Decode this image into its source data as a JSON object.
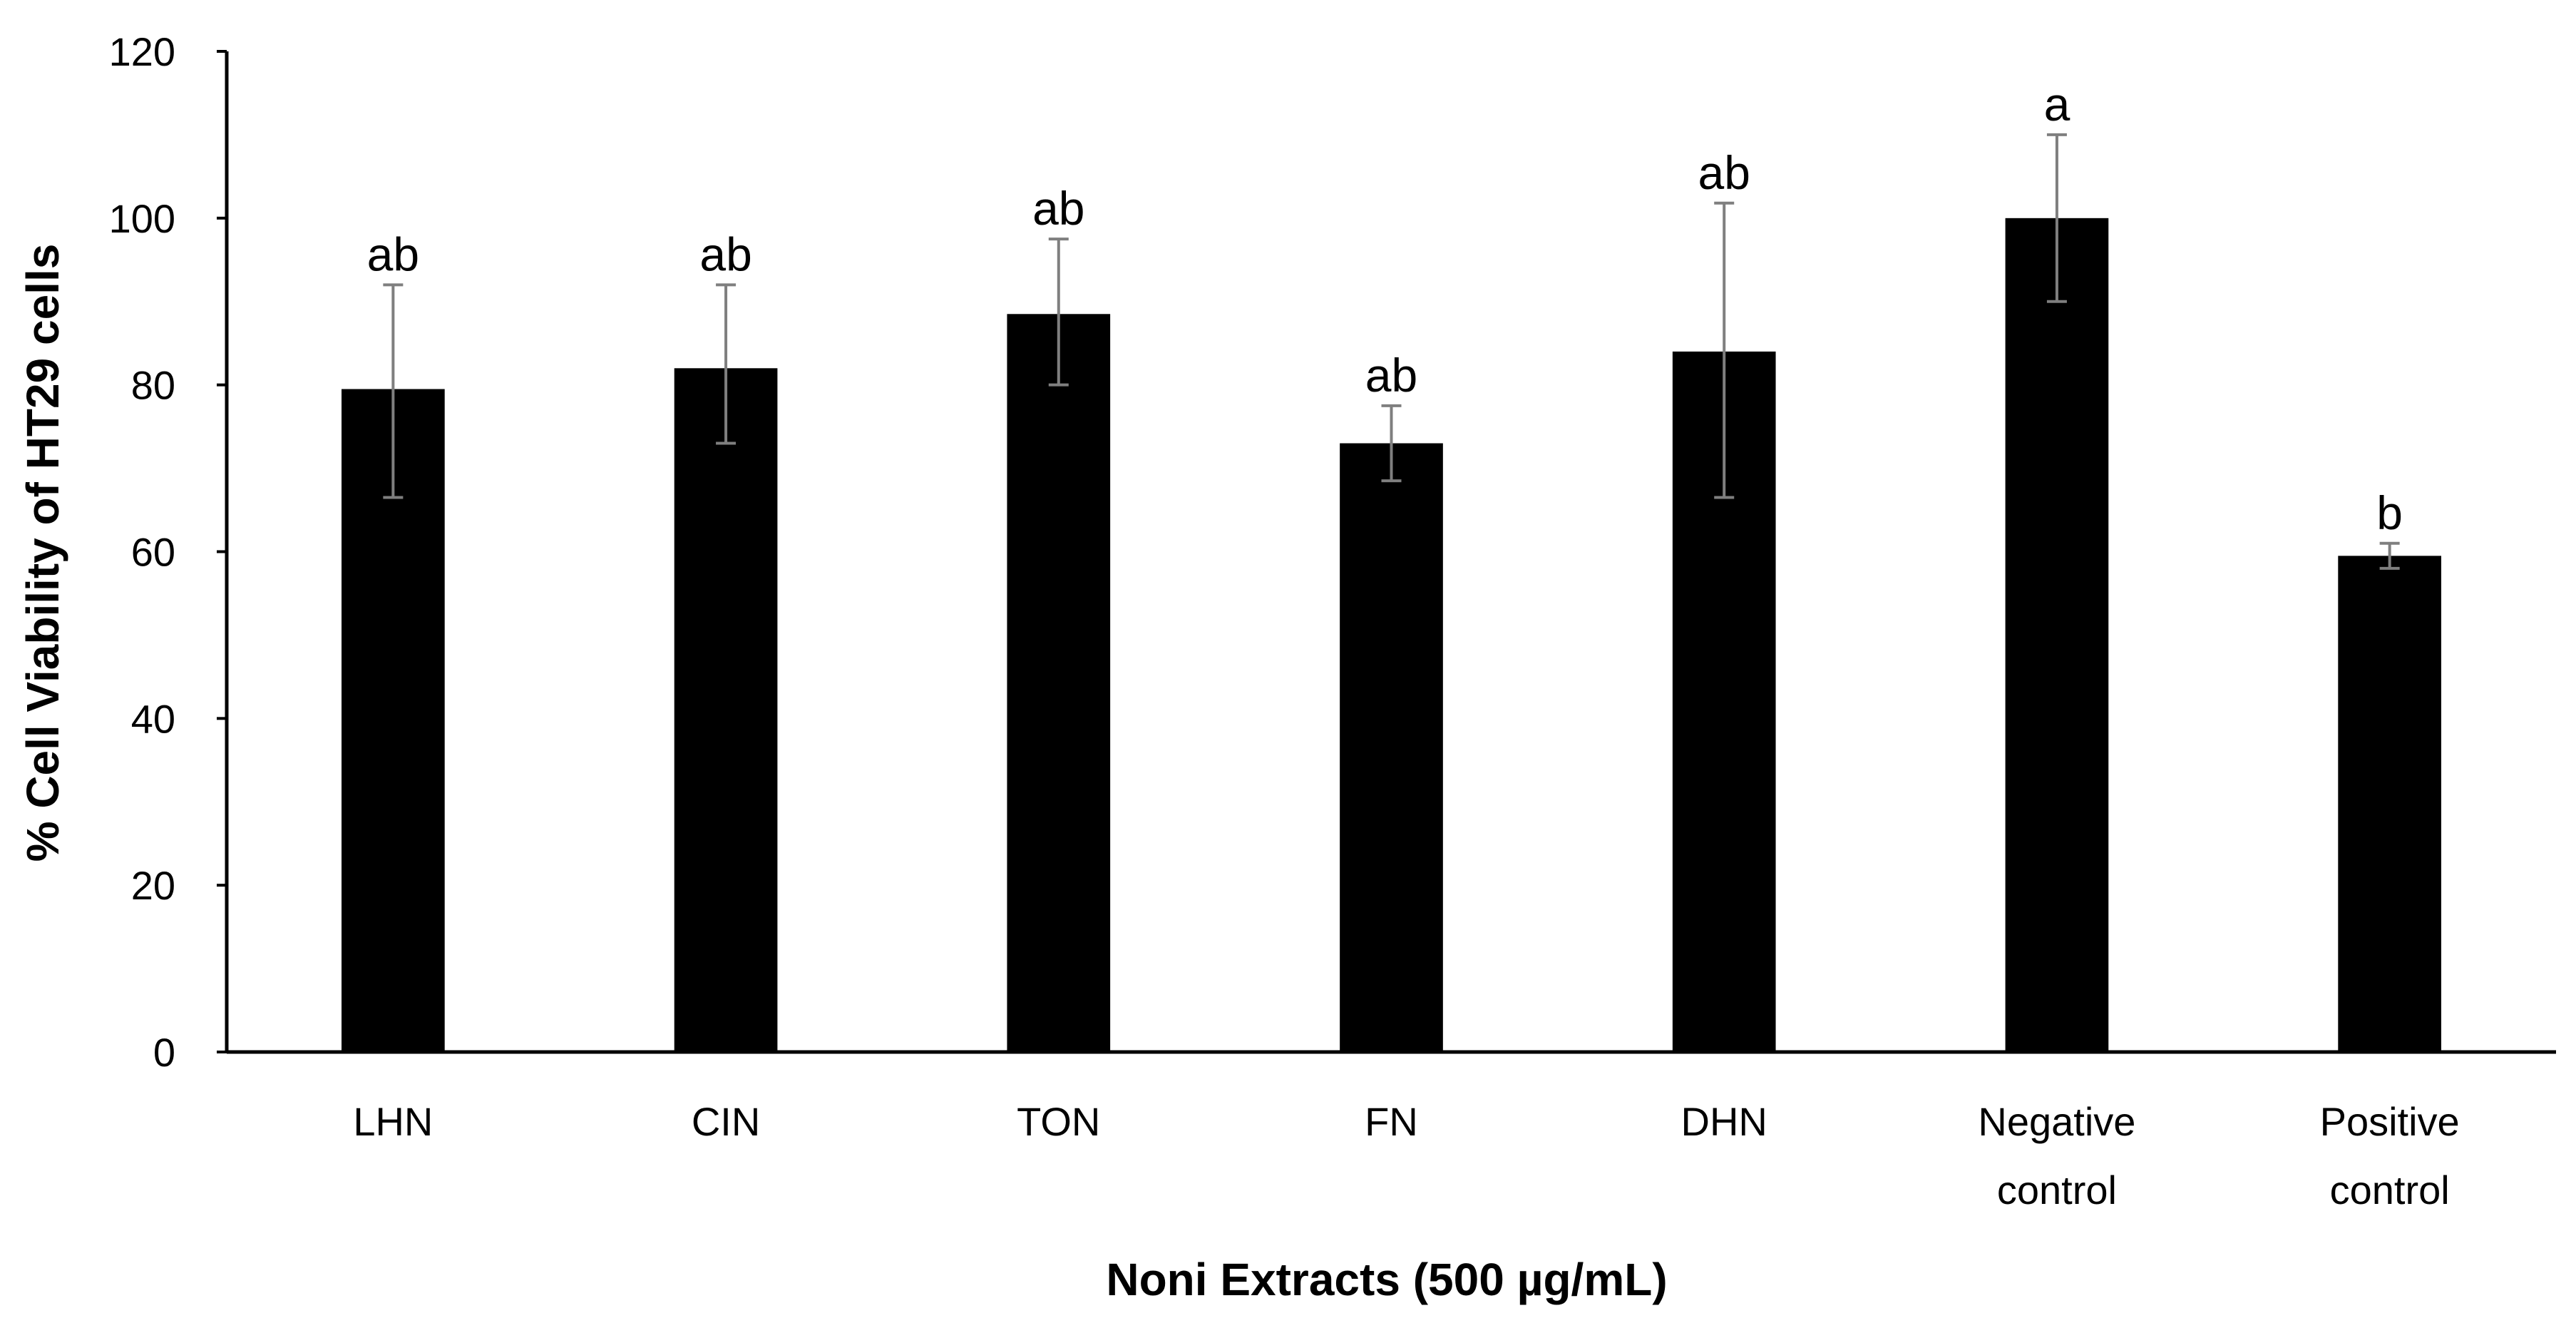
{
  "chart_data": {
    "type": "bar",
    "categories": [
      [
        "LHN"
      ],
      [
        "CIN"
      ],
      [
        "TON"
      ],
      [
        "FN"
      ],
      [
        "DHN"
      ],
      [
        "Negative",
        "control"
      ],
      [
        "Positive",
        "control"
      ]
    ],
    "values": [
      79.5,
      82,
      88.5,
      73,
      84,
      100,
      59.5
    ],
    "error_upper": [
      92,
      92,
      97.5,
      77.5,
      101.8,
      110,
      61
    ],
    "error_lower": [
      66.5,
      73,
      80,
      68.5,
      66.5,
      90,
      58
    ],
    "significance_labels": [
      "ab",
      "ab",
      "ab",
      "ab",
      "ab",
      "a",
      "b"
    ],
    "xlabel": "Noni Extracts (500 µg/mL)",
    "ylabel": "% Cell Viability of HT29 cells",
    "ylim": [
      0,
      120
    ],
    "yticks": [
      0,
      20,
      40,
      60,
      80,
      100,
      120
    ],
    "grid": false,
    "bar_color": "#000000",
    "error_bar_color": "#7f7f7f"
  }
}
